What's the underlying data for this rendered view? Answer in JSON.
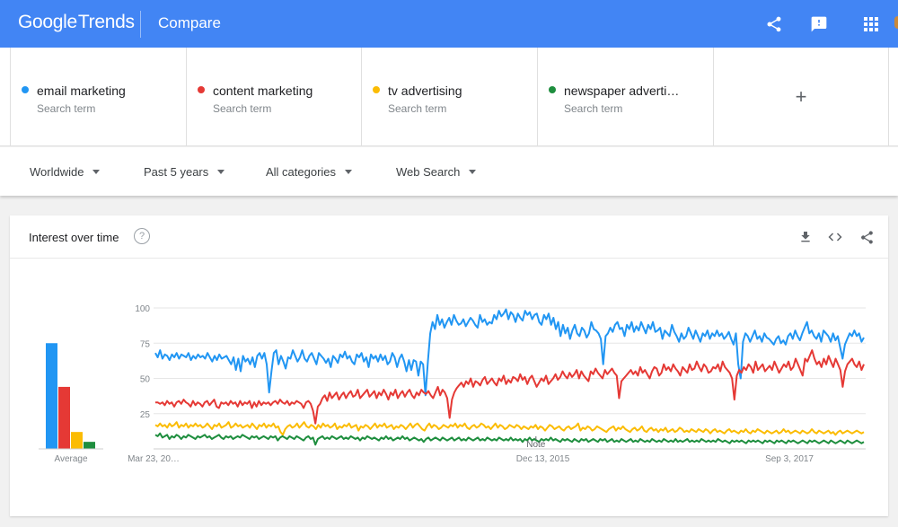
{
  "header": {
    "logo_google": "Google",
    "logo_trends": "Trends",
    "page_title": "Compare",
    "icons": [
      "share-icon",
      "feedback-icon",
      "apps-icon"
    ]
  },
  "terms": [
    {
      "label": "email marketing",
      "sub": "Search term",
      "color": "#2196f3"
    },
    {
      "label": "content marketing",
      "sub": "Search term",
      "color": "#e53935"
    },
    {
      "label": "tv advertising",
      "sub": "Search term",
      "color": "#fbbc04"
    },
    {
      "label": "newspaper adverti…",
      "sub": "Search term",
      "color": "#1e8e3e"
    }
  ],
  "add_term": "+",
  "filters": {
    "region": "Worldwide",
    "time": "Past 5 years",
    "category": "All categories",
    "search_type": "Web Search"
  },
  "card": {
    "title": "Interest over time",
    "help": "?",
    "icons": [
      "download-icon",
      "embed-icon",
      "share-icon"
    ]
  },
  "chart_data": {
    "type": "line",
    "title": "",
    "xlabel": "",
    "ylabel": "",
    "ylim": [
      0,
      100
    ],
    "yticks": [
      25,
      50,
      75,
      100
    ],
    "grid": true,
    "x_start": "Mar 23, 2013",
    "x_end": "Mar 2018",
    "x_ticks": [
      {
        "label": "Mar 23, 20…",
        "date": "2013-03-23"
      },
      {
        "label": "Dec 13, 2015",
        "date": "2015-12-13"
      },
      {
        "label": "Sep 3, 2017",
        "date": "2017-09-03"
      }
    ],
    "note": {
      "label": "Note",
      "date": "2016-01-01"
    },
    "average": {
      "label": "Average",
      "values": [
        75,
        44,
        12,
        5
      ]
    },
    "series": [
      {
        "name": "email marketing",
        "color": "#2196f3",
        "values": [
          68,
          65,
          70,
          64,
          67,
          66,
          63,
          67,
          65,
          68,
          64,
          67,
          66,
          65,
          68,
          63,
          66,
          64,
          67,
          65,
          66,
          64,
          68,
          65,
          62,
          66,
          63,
          67,
          64,
          65,
          66,
          63,
          60,
          65,
          56,
          64,
          55,
          66,
          62,
          64,
          60,
          65,
          58,
          66,
          68,
          64,
          68,
          60,
          40,
          55,
          68,
          70,
          60,
          66,
          62,
          57,
          65,
          64,
          70,
          66,
          62,
          65,
          70,
          64,
          62,
          66,
          68,
          64,
          60,
          68,
          66,
          64,
          61,
          64,
          58,
          66,
          64,
          61,
          67,
          65,
          69,
          64,
          66,
          62,
          60,
          67,
          65,
          68,
          62,
          65,
          58,
          67,
          64,
          66,
          62,
          67,
          63,
          66,
          60,
          62,
          68,
          65,
          58,
          64,
          67,
          62,
          55,
          63,
          56,
          63,
          62,
          52,
          62,
          60,
          38,
          62,
          82,
          90,
          85,
          95,
          88,
          92,
          86,
          90,
          93,
          88,
          95,
          91,
          88,
          89,
          92,
          87,
          90,
          93,
          91,
          88,
          86,
          95,
          90,
          92,
          88,
          90,
          89,
          95,
          92,
          98,
          94,
          96,
          99,
          92,
          97,
          95,
          90,
          96,
          93,
          91,
          98,
          95,
          97,
          92,
          95,
          96,
          90,
          88,
          95,
          92,
          96,
          88,
          93,
          85,
          90,
          80,
          88,
          82,
          86,
          78,
          84,
          88,
          82,
          80,
          86,
          84,
          79,
          82,
          90,
          85,
          84,
          82,
          78,
          60,
          80,
          82,
          86,
          83,
          88,
          90,
          85,
          86,
          80,
          88,
          85,
          90,
          83,
          87,
          84,
          90,
          86,
          82,
          88,
          85,
          90,
          83,
          84,
          86,
          78,
          84,
          82,
          80,
          88,
          83,
          80,
          76,
          82,
          78,
          80,
          86,
          82,
          78,
          84,
          80,
          76,
          82,
          80,
          84,
          78,
          82,
          80,
          84,
          80,
          82,
          78,
          80,
          83,
          78,
          74,
          82,
          60,
          50,
          76,
          82,
          80,
          76,
          80,
          84,
          78,
          80,
          76,
          82,
          79,
          78,
          76,
          74,
          78,
          80,
          75,
          77,
          74,
          80,
          82,
          78,
          84,
          80,
          77,
          82,
          86,
          90,
          82,
          84,
          80,
          78,
          82,
          76,
          84,
          82,
          80,
          76,
          82,
          77,
          80,
          72,
          64,
          74,
          78,
          82,
          80,
          84,
          80,
          82,
          76,
          79
        ]
      },
      {
        "name": "content marketing",
        "color": "#e53935",
        "values": [
          33,
          33,
          32,
          33,
          31,
          34,
          32,
          33,
          30,
          33,
          34,
          32,
          35,
          33,
          32,
          30,
          34,
          31,
          33,
          32,
          30,
          33,
          34,
          31,
          33,
          35,
          30,
          29,
          33,
          32,
          33,
          31,
          34,
          32,
          33,
          30,
          34,
          31,
          33,
          32,
          34,
          29,
          33,
          30,
          34,
          31,
          33,
          32,
          33,
          31,
          33,
          34,
          32,
          35,
          33,
          32,
          34,
          31,
          33,
          32,
          34,
          33,
          32,
          29,
          33,
          34,
          32,
          27,
          18,
          30,
          32,
          36,
          38,
          34,
          40,
          36,
          38,
          40,
          35,
          38,
          40,
          36,
          39,
          41,
          37,
          38,
          42,
          36,
          38,
          40,
          42,
          37,
          39,
          41,
          36,
          40,
          38,
          42,
          39,
          35,
          40,
          38,
          42,
          36,
          39,
          41,
          37,
          40,
          42,
          38,
          36,
          40,
          38,
          42,
          40,
          39,
          41,
          38,
          36,
          40,
          44,
          38,
          42,
          40,
          36,
          22,
          35,
          40,
          43,
          45,
          47,
          44,
          48,
          46,
          50,
          44,
          48,
          47,
          45,
          49,
          51,
          46,
          48,
          50,
          47,
          45,
          50,
          48,
          52,
          46,
          49,
          47,
          51,
          50,
          48,
          53,
          49,
          51,
          46,
          50,
          52,
          48,
          44,
          47,
          50,
          48,
          52,
          46,
          48,
          50,
          53,
          49,
          51,
          55,
          52,
          50,
          54,
          51,
          53,
          56,
          50,
          55,
          52,
          50,
          48,
          55,
          53,
          57,
          54,
          52,
          50,
          56,
          53,
          55,
          57,
          54,
          52,
          36,
          48,
          50,
          52,
          54,
          56,
          53,
          55,
          52,
          58,
          54,
          56,
          53,
          50,
          55,
          58,
          57,
          52,
          54,
          60,
          56,
          58,
          55,
          60,
          57,
          55,
          52,
          58,
          56,
          54,
          60,
          56,
          57,
          62,
          58,
          55,
          60,
          58,
          54,
          55,
          58,
          57,
          60,
          55,
          62,
          58,
          56,
          54,
          50,
          35,
          52,
          56,
          54,
          58,
          56,
          60,
          58,
          54,
          62,
          56,
          58,
          60,
          55,
          57,
          59,
          56,
          62,
          58,
          54,
          57,
          60,
          58,
          62,
          56,
          58,
          64,
          60,
          56,
          52,
          64,
          62,
          66,
          70,
          64,
          60,
          62,
          58,
          64,
          60,
          66,
          62,
          58,
          64,
          60,
          56,
          44,
          55,
          60,
          62,
          64,
          60,
          58,
          62,
          56,
          60
        ]
      },
      {
        "name": "tv advertising",
        "color": "#fbbc04",
        "values": [
          17,
          16,
          18,
          16,
          17,
          15,
          18,
          16,
          17,
          19,
          15,
          17,
          16,
          18,
          15,
          17,
          16,
          18,
          16,
          17,
          15,
          16,
          18,
          16,
          14,
          17,
          16,
          18,
          15,
          16,
          17,
          19,
          15,
          16,
          18,
          16,
          17,
          15,
          16,
          17,
          15,
          18,
          16,
          14,
          17,
          16,
          18,
          15,
          17,
          16,
          18,
          15,
          16,
          12,
          10,
          14,
          16,
          17,
          15,
          16,
          18,
          15,
          17,
          19,
          16,
          15,
          17,
          16,
          14,
          17,
          15,
          18,
          16,
          17,
          15,
          16,
          18,
          14,
          16,
          15,
          17,
          16,
          18,
          15,
          16,
          17,
          13,
          16,
          15,
          17,
          16,
          14,
          16,
          18,
          15,
          17,
          16,
          18,
          15,
          16,
          17,
          14,
          16,
          15,
          17,
          16,
          14,
          16,
          18,
          15,
          17,
          18,
          16,
          14,
          13,
          16,
          18,
          15,
          17,
          16,
          14,
          15,
          17,
          16,
          15,
          17,
          16,
          18,
          15,
          17,
          16,
          18,
          15,
          14,
          16,
          17,
          15,
          16,
          18,
          17,
          15,
          16,
          14,
          16,
          18,
          15,
          17,
          16,
          14,
          15,
          17,
          16,
          15,
          17,
          16,
          14,
          16,
          15,
          14,
          16,
          15,
          17,
          14,
          16,
          15,
          13,
          15,
          17,
          16,
          14,
          15,
          16,
          14,
          13,
          15,
          16,
          14,
          15,
          16,
          18,
          13,
          15,
          14,
          16,
          15,
          13,
          14,
          16,
          15,
          14,
          13,
          12,
          14,
          15,
          16,
          13,
          15,
          14,
          16,
          14,
          13,
          12,
          14,
          15,
          13,
          14,
          16,
          13,
          12,
          14,
          15,
          13,
          14,
          12,
          14,
          13,
          15,
          12,
          13,
          14,
          12,
          13,
          15,
          14,
          12,
          13,
          12,
          14,
          13,
          12,
          14,
          13,
          12,
          14,
          13,
          11,
          13,
          14,
          12,
          13,
          12,
          11,
          13,
          14,
          12,
          13,
          12,
          11,
          13,
          12,
          14,
          12,
          11,
          13,
          12,
          14,
          13,
          12,
          11,
          13,
          12,
          11,
          12,
          13,
          11,
          12,
          14,
          12,
          13,
          11,
          12,
          13,
          12,
          11,
          13,
          12,
          11,
          12,
          14,
          12,
          11,
          13,
          12,
          11,
          12,
          13,
          11,
          12,
          10,
          12,
          13,
          11,
          12,
          13,
          12,
          11,
          12,
          13,
          12,
          11,
          12
        ]
      },
      {
        "name": "newspaper advertising",
        "color": "#1e8e3e",
        "values": [
          10,
          9,
          11,
          8,
          9,
          10,
          7,
          9,
          8,
          10,
          9,
          7,
          9,
          8,
          10,
          9,
          8,
          7,
          9,
          8,
          9,
          10,
          8,
          9,
          7,
          8,
          9,
          10,
          8,
          7,
          9,
          8,
          9,
          7,
          8,
          9,
          8,
          10,
          9,
          8,
          7,
          9,
          8,
          9,
          7,
          8,
          9,
          8,
          7,
          9,
          8,
          9,
          6,
          8,
          9,
          8,
          7,
          9,
          8,
          7,
          9,
          8,
          7,
          6,
          8,
          9,
          7,
          8,
          3,
          7,
          8,
          9,
          7,
          8,
          7,
          9,
          8,
          7,
          8,
          9,
          7,
          8,
          7,
          9,
          8,
          7,
          8,
          6,
          8,
          7,
          9,
          8,
          7,
          8,
          7,
          6,
          8,
          7,
          9,
          7,
          8,
          6,
          7,
          8,
          7,
          9,
          7,
          8,
          6,
          7,
          8,
          7,
          6,
          7,
          5,
          7,
          8,
          6,
          7,
          8,
          7,
          6,
          8,
          7,
          6,
          7,
          8,
          6,
          7,
          8,
          6,
          7,
          6,
          8,
          7,
          6,
          7,
          8,
          6,
          7,
          6,
          8,
          7,
          6,
          7,
          6,
          8,
          7,
          6,
          7,
          6,
          8,
          6,
          7,
          6,
          7,
          5,
          7,
          6,
          8,
          6,
          7,
          6,
          5,
          7,
          6,
          7,
          6,
          8,
          6,
          7,
          6,
          5,
          7,
          6,
          7,
          6,
          5,
          7,
          6,
          5,
          7,
          6,
          7,
          5,
          6,
          7,
          6,
          5,
          7,
          6,
          7,
          5,
          6,
          7,
          5,
          6,
          5,
          7,
          6,
          5,
          6,
          7,
          5,
          6,
          5,
          7,
          6,
          5,
          6,
          5,
          7,
          6,
          5,
          6,
          5,
          7,
          6,
          5,
          6,
          5,
          7,
          5,
          6,
          5,
          6,
          7,
          5,
          6,
          5,
          6,
          5,
          7,
          6,
          5,
          6,
          5,
          6,
          5,
          7,
          6,
          5,
          6,
          5,
          4,
          6,
          5,
          6,
          5,
          6,
          5,
          4,
          6,
          5,
          6,
          5,
          6,
          5,
          4,
          6,
          5,
          6,
          5,
          4,
          6,
          5,
          6,
          5,
          4,
          6,
          5,
          6,
          5,
          4,
          5,
          6,
          5,
          4,
          6,
          5,
          6,
          5,
          4,
          5,
          6,
          5,
          4,
          6,
          5,
          4,
          5,
          6,
          5,
          4,
          6,
          5,
          4,
          5,
          6,
          5,
          4,
          5
        ]
      }
    ]
  }
}
